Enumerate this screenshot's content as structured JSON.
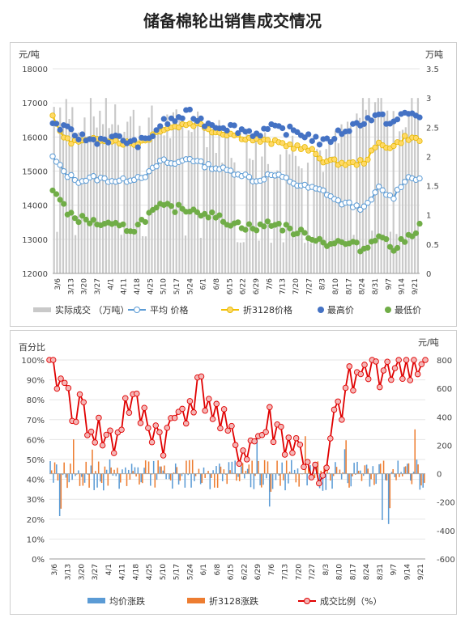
{
  "title": "储备棉轮出销售成交情况",
  "chart_data": [
    {
      "type": "bar+line+scatter",
      "left_unit": "元/吨",
      "right_unit": "万吨",
      "ylim_left": [
        12000,
        18000
      ],
      "yticks_left": [
        "12000",
        "13000",
        "14000",
        "15000",
        "16000",
        "17000",
        "18000"
      ],
      "ylim_right": [
        0,
        3.5
      ],
      "yticks_right": [
        "0",
        "0.5",
        "1",
        "1.5",
        "2",
        "2.5",
        "3",
        "3.5"
      ],
      "x_tick_labels": [
        "3/6",
        "3/13",
        "3/20",
        "3/27",
        "4/1",
        "4/11",
        "4/18",
        "4/25",
        "5/10",
        "5/17",
        "5/24",
        "6/1",
        "6/8",
        "6/15",
        "6/22",
        "6/29",
        "7/6",
        "7/13",
        "7/20",
        "7/27",
        "8/3",
        "8/10",
        "8/17",
        "8/24",
        "8/31",
        "9/7",
        "9/14",
        "9/21"
      ],
      "legend": [
        "实际成交 （万吨）",
        "平均 价格",
        "折3128价格",
        "最高价",
        "最低价"
      ],
      "colors": {
        "volume": "#c9c9c9",
        "avg": "#9dc3e6",
        "avg_edge": "#5b9bd5",
        "std": "#ffd966",
        "std_edge": "#f2c000",
        "high": "#4472c4",
        "low": "#70ad47"
      },
      "series": {
        "volume_anchors": [
          2.8,
          2.95,
          2.6,
          2.7,
          2.75,
          2.7,
          2.65,
          2.6,
          2.55,
          2.5,
          2.55,
          2.45,
          2.6,
          2.4,
          2.5,
          2.3,
          2.2,
          2.1,
          2.3,
          2.2,
          2.05,
          2.15,
          2.2,
          2.05,
          2.1,
          1.95,
          2.3,
          2.6,
          2.8,
          2.95,
          3.0,
          2.7,
          2.65,
          2.9
        ],
        "avg_anchors": [
          15400,
          14900,
          14700,
          14800,
          14750,
          14700,
          14800,
          14900,
          15300,
          15200,
          15400,
          15200,
          15100,
          15000,
          14900,
          14700,
          14900,
          14800,
          14600,
          14500,
          14400,
          14100,
          14000,
          13900,
          14500,
          14200,
          14800,
          14800
        ],
        "std_anchors": [
          16550,
          15900,
          15850,
          15900,
          15950,
          15850,
          15800,
          15950,
          16250,
          16300,
          16400,
          16350,
          16150,
          16100,
          16000,
          15900,
          15850,
          15800,
          15700,
          15600,
          15300,
          15250,
          15200,
          15300,
          15800,
          15700,
          16000,
          15900
        ],
        "high_anchors": [
          16400,
          16200,
          16000,
          15900,
          15950,
          15950,
          15800,
          15900,
          16400,
          16500,
          16700,
          16450,
          16350,
          16300,
          16200,
          16100,
          16250,
          16200,
          16150,
          16000,
          15800,
          16100,
          16300,
          16500,
          16600,
          16400,
          16700,
          16600
        ],
        "low_anchors": [
          14500,
          13800,
          13600,
          13500,
          13400,
          13350,
          13300,
          13700,
          13950,
          13900,
          13900,
          13800,
          13650,
          13500,
          13400,
          13300,
          13500,
          13350,
          13200,
          13100,
          12900,
          12900,
          12850,
          12700,
          13200,
          12700,
          13000,
          13400
        ]
      }
    },
    {
      "type": "bar+line",
      "left_unit": "百分比",
      "right_unit": "元/吨",
      "ylim_left": [
        0,
        100
      ],
      "yticks_left": [
        "0%",
        "10%",
        "20%",
        "30%",
        "40%",
        "50%",
        "60%",
        "70%",
        "80%",
        "90%",
        "100%"
      ],
      "ylim_right": [
        -600,
        800
      ],
      "yticks_right": [
        "-600",
        "-400",
        "-200",
        "0",
        "200",
        "400",
        "600",
        "800"
      ],
      "x_tick_labels": [
        "3/6",
        "3/13",
        "3/20",
        "3/27",
        "4/1",
        "4/11",
        "4/18",
        "4/25",
        "5/10",
        "5/17",
        "5/24",
        "6/1",
        "6/8",
        "6/15",
        "6/22",
        "6/29",
        "7/6",
        "7/13",
        "7/20",
        "7/27",
        "8/3",
        "8/10",
        "8/17",
        "8/24",
        "8/31",
        "9/7",
        "9/14",
        "9/21"
      ],
      "legend": [
        "均价涨跌",
        "折3128涨跌",
        "成交比例（%）"
      ],
      "colors": {
        "avg_change": "#5b9bd5",
        "std_change": "#ed7d31",
        "ratio_line": "#e00000",
        "ratio_marker": "#f4b6b6"
      },
      "series": {
        "ratio_anchors": [
          100,
          88,
          76,
          70,
          62,
          58,
          80,
          72,
          66,
          60,
          74,
          82,
          84,
          70,
          58,
          55,
          60,
          68,
          62,
          56,
          50,
          30,
          68,
          85,
          92,
          96,
          98,
          95,
          100,
          97
        ]
      }
    }
  ]
}
